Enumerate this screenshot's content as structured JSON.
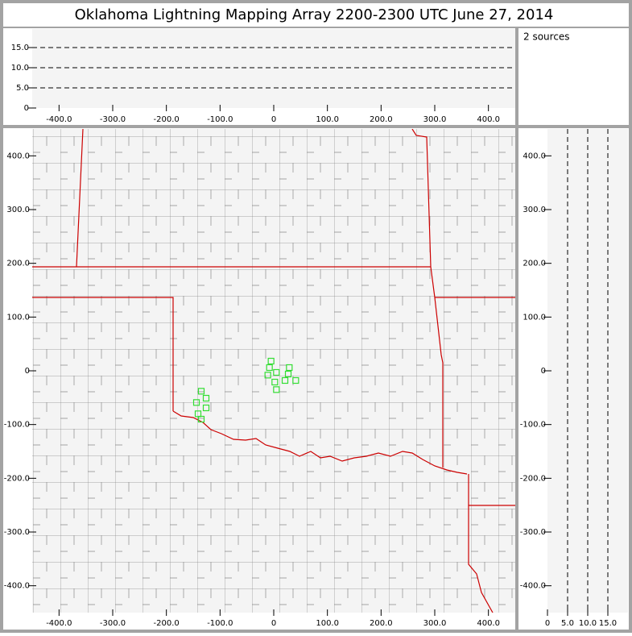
{
  "title": "Oklahoma Lightning Mapping Array   2200-2300 UTC  June 27, 2014",
  "annotation": "2 sources",
  "chart_data": [
    {
      "type": "scatter",
      "xlim": [
        -450,
        450
      ],
      "xticks": [
        {
          "value": -400,
          "label": "-400.0"
        },
        {
          "value": -300,
          "label": "-300.0"
        },
        {
          "value": -200,
          "label": "-200.0"
        },
        {
          "value": -100,
          "label": "-100.0"
        },
        0,
        {
          "value": 100,
          "label": "100.0"
        },
        {
          "value": 200,
          "label": "200.0"
        },
        {
          "value": 300,
          "label": "300.0"
        },
        {
          "value": 400,
          "label": "400.0"
        }
      ],
      "ylim": [
        0,
        19.6
      ],
      "yticks": [
        0,
        {
          "value": 5,
          "label": "5.0"
        },
        {
          "value": 10,
          "label": "10.0"
        },
        {
          "value": 15,
          "label": "15.0"
        }
      ],
      "grid": "y"
    },
    {
      "type": "scatter",
      "xlim": [
        -450,
        450
      ],
      "xticks": [
        {
          "value": -400,
          "label": "-400.0"
        },
        {
          "value": -300,
          "label": "-300.0"
        },
        {
          "value": -200,
          "label": "-200.0"
        },
        {
          "value": -100,
          "label": "-100.0"
        },
        0,
        {
          "value": 100,
          "label": "100.0"
        },
        {
          "value": 200,
          "label": "200.0"
        },
        {
          "value": 300,
          "label": "300.0"
        },
        {
          "value": 400,
          "label": "400.0"
        }
      ],
      "ylim": [
        -450,
        450
      ],
      "yticks": [
        {
          "value": 400,
          "label": "400.0"
        },
        {
          "value": 300,
          "label": "300.0"
        },
        {
          "value": 200,
          "label": "200.0"
        },
        {
          "value": 100,
          "label": "100.0"
        },
        0,
        {
          "value": -100,
          "label": "-100.0"
        },
        {
          "value": -200,
          "label": "-200.0"
        },
        {
          "value": -300,
          "label": "-300.0"
        },
        {
          "value": -400,
          "label": "-400.0"
        }
      ],
      "series": [
        {
          "color": "#33dd33",
          "marker": "square",
          "x": [
            -5,
            -8,
            5,
            -11,
            29,
            27,
            41,
            21,
            2,
            5,
            -135,
            -126,
            -144,
            -126,
            -141,
            -135
          ],
          "y": [
            18,
            6,
            -3,
            -8,
            6,
            -6,
            -18,
            -18,
            -21,
            -35,
            -38,
            -51,
            -59,
            -69,
            -80,
            -90
          ]
        }
      ]
    },
    {
      "type": "scatter",
      "xlim": [
        0,
        20
      ],
      "xticks": [
        0,
        {
          "value": 5,
          "label": "5.0"
        },
        {
          "value": 10,
          "label": "10.0"
        },
        {
          "value": 15,
          "label": "15.0"
        }
      ],
      "ylim": [
        -450,
        450
      ],
      "yticks": [
        {
          "value": 400,
          "label": "400.0"
        },
        {
          "value": 300,
          "label": "300.0"
        },
        {
          "value": 200,
          "label": "200.0"
        },
        {
          "value": 100,
          "label": "100.0"
        },
        0,
        {
          "value": -100,
          "label": "-100.0"
        },
        {
          "value": -200,
          "label": "-200.0"
        },
        {
          "value": -300,
          "label": "-300.0"
        },
        {
          "value": -400,
          "label": "-400.0"
        }
      ],
      "grid": "x"
    }
  ]
}
